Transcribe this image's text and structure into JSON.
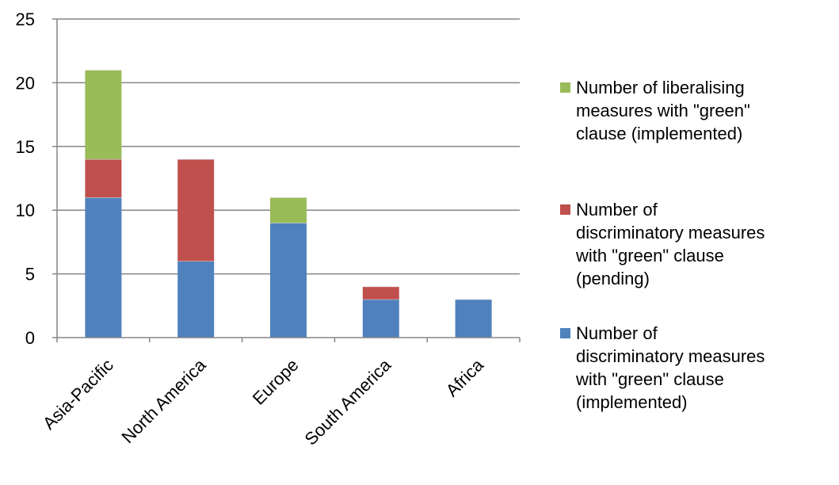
{
  "chart_data": {
    "type": "bar",
    "stacked": true,
    "categories": [
      "Asia-Pacific",
      "North America",
      "Europe",
      "South America",
      "Africa"
    ],
    "series": [
      {
        "name": "Number of discriminatory measures with \"green\" clause (implemented)",
        "legend_lines": [
          "Number of",
          "discriminatory measures",
          "with \"green\" clause",
          "(implemented)"
        ],
        "color": "#4F81BD",
        "values": [
          11,
          6,
          9,
          3,
          3
        ]
      },
      {
        "name": "Number of discriminatory measures with \"green\" clause (pending)",
        "legend_lines": [
          "Number of",
          "discriminatory measures",
          "with \"green\" clause",
          "(pending)"
        ],
        "color": "#C0504D",
        "values": [
          3,
          8,
          0,
          1,
          0
        ]
      },
      {
        "name": "Number of liberalising measures with \"green\" clause (implemented)",
        "legend_lines": [
          "Number of liberalising",
          "measures with \"green\"",
          "clause (implemented)"
        ],
        "color": "#9BBB59",
        "values": [
          7,
          0,
          2,
          0,
          0
        ]
      }
    ],
    "yticks": [
      0,
      5,
      10,
      15,
      20,
      25
    ],
    "ylim": [
      0,
      25
    ],
    "grid": true,
    "legend_position": "right"
  }
}
